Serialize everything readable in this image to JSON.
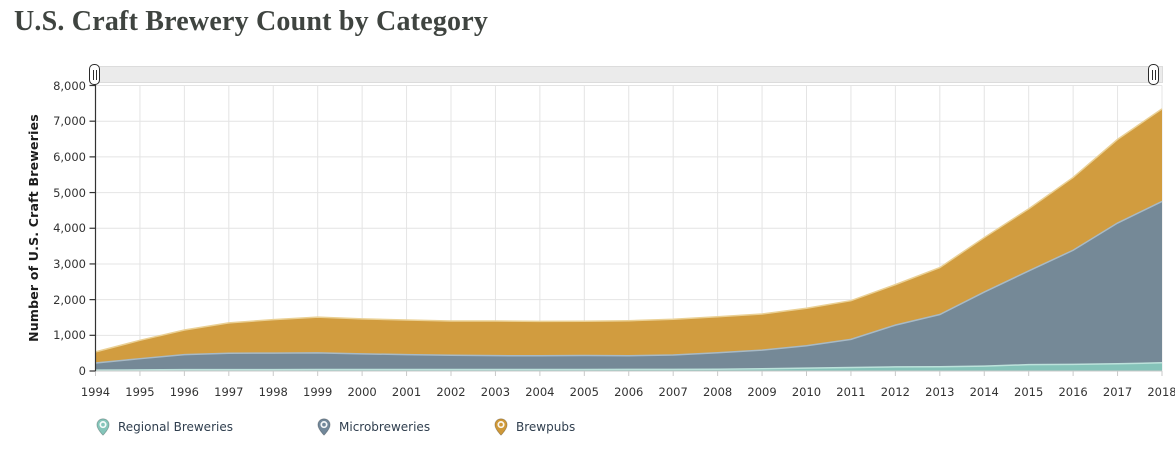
{
  "page": {
    "title": "U.S. Craft Brewery Count by Category"
  },
  "range_selector": {
    "left_handle_icon": "drag-grip-icon",
    "right_handle_icon": "drag-grip-icon"
  },
  "legend_marker_icon": "map-pin-icon",
  "chart_data": {
    "type": "area",
    "stacked": true,
    "title": "U.S. Craft Brewery Count by Category",
    "xlabel": "",
    "ylabel": "Number of U.S. Craft Breweries",
    "ylim": [
      0,
      8000
    ],
    "y_ticks": [
      0,
      1000,
      2000,
      3000,
      4000,
      5000,
      6000,
      7000,
      8000
    ],
    "y_tick_labels": [
      "0",
      "1,000",
      "2,000",
      "3,000",
      "4,000",
      "5,000",
      "6,000",
      "7,000",
      "8,000"
    ],
    "grid": true,
    "legend_position": "bottom",
    "x": [
      1994,
      1995,
      1996,
      1997,
      1998,
      1999,
      2000,
      2001,
      2002,
      2003,
      2004,
      2005,
      2006,
      2007,
      2008,
      2009,
      2010,
      2011,
      2012,
      2013,
      2014,
      2015,
      2016,
      2017,
      2018
    ],
    "series": [
      {
        "name": "Regional Breweries",
        "color": "#85c5ba",
        "edge_color": "#bce2db",
        "values": [
          25,
          30,
          39,
          38,
          40,
          41,
          42,
          42,
          43,
          43,
          43,
          43,
          44,
          46,
          50,
          64,
          81,
          97,
          116,
          119,
          135,
          178,
          186,
          202,
          230
        ]
      },
      {
        "name": "Microbreweries",
        "color": "#72889a",
        "edge_color": "#a8bac6",
        "values": [
          200,
          315,
          420,
          460,
          460,
          468,
          438,
          418,
          398,
          387,
          383,
          391,
          385,
          403,
          461,
          521,
          625,
          790,
          1170,
          1464,
          2076,
          2626,
          3197,
          3944,
          4522
        ]
      },
      {
        "name": "Brewpubs",
        "color": "#cf9939",
        "edge_color": "#ead094",
        "values": [
          310,
          515,
          690,
          850,
          940,
          1000,
          980,
          970,
          960,
          970,
          965,
          960,
          980,
          1000,
          1010,
          1011,
          1053,
          1083,
          1134,
          1315,
          1528,
          1740,
          2041,
          2344,
          2594
        ]
      }
    ],
    "totals": [
      535,
      860,
      1149,
      1348,
      1440,
      1509,
      1460,
      1430,
      1401,
      1400,
      1391,
      1394,
      1409,
      1449,
      1521,
      1596,
      1759,
      1970,
      2420,
      2898,
      3739,
      4544,
      5424,
      6490,
      7346
    ]
  },
  "colors": {
    "grid_line": "#e4e4e4",
    "y_axis_line": "#333333",
    "x_axis_line": "#c9c9c9",
    "track_background": "#ebebeb",
    "title_text": "#3f4440",
    "tick_text": "#333333",
    "legend_text": "#2f3e4e"
  }
}
